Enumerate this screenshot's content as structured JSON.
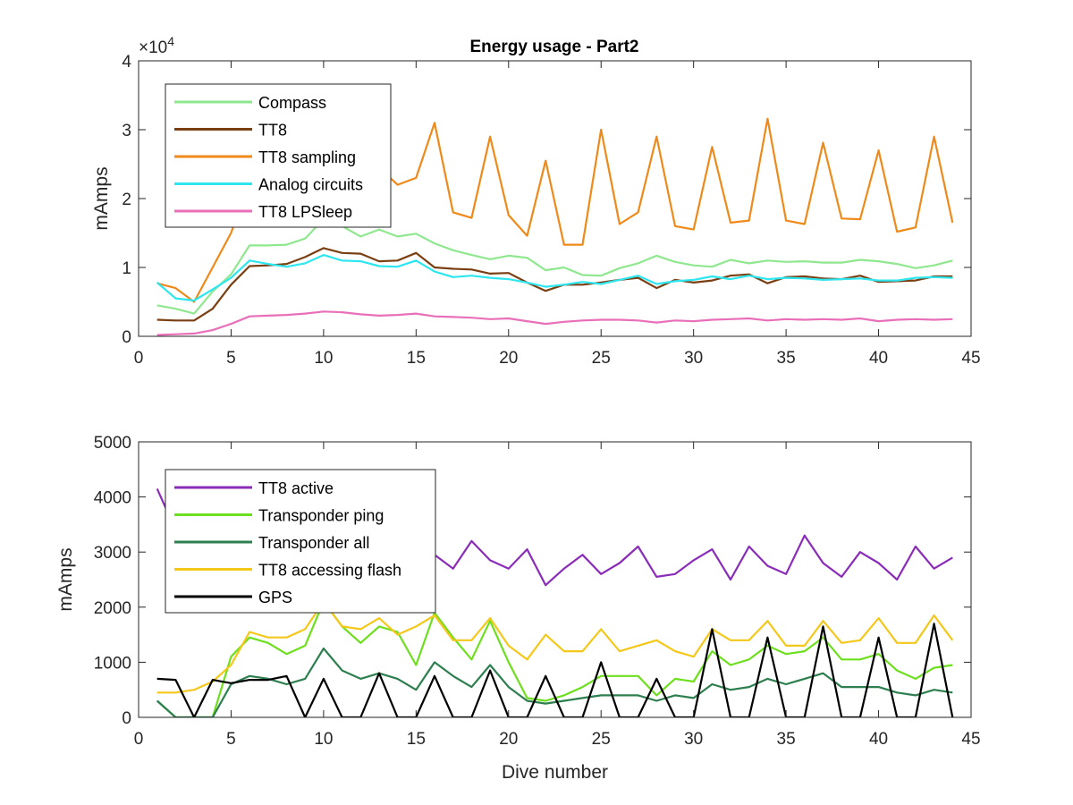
{
  "figure_title": "Energy usage - Part2",
  "chart_data": [
    {
      "type": "line",
      "title": "Energy usage - Part2",
      "xlabel": "",
      "ylabel": "mAmps",
      "exponent_label": "×10",
      "exponent_power": "4",
      "xlim": [
        0,
        45
      ],
      "ylim": [
        0,
        40000
      ],
      "xticks": [
        "0",
        "5",
        "10",
        "15",
        "20",
        "25",
        "30",
        "35",
        "40",
        "45"
      ],
      "yticks": [
        "0",
        "1",
        "2",
        "3",
        "4"
      ],
      "ytick_values": [
        0,
        10000,
        20000,
        30000,
        40000
      ],
      "grid": false,
      "legend_position": "top-left",
      "x": [
        1,
        2,
        3,
        4,
        5,
        6,
        7,
        8,
        9,
        10,
        11,
        12,
        13,
        14,
        15,
        16,
        17,
        18,
        19,
        20,
        21,
        22,
        23,
        24,
        25,
        26,
        27,
        28,
        29,
        30,
        31,
        32,
        33,
        34,
        35,
        36,
        37,
        38,
        39,
        40,
        41,
        42,
        43,
        44
      ],
      "series": [
        {
          "name": "Compass",
          "color": "#8fe88f",
          "values": [
            4500,
            4000,
            3300,
            6500,
            9000,
            13200,
            13200,
            13300,
            14200,
            17000,
            16000,
            14500,
            15500,
            14500,
            14900,
            13500,
            12500,
            11800,
            11200,
            11700,
            11400,
            9600,
            10000,
            8900,
            8800,
            9900,
            10600,
            11700,
            10800,
            10300,
            10100,
            11100,
            10600,
            11000,
            10800,
            10900,
            10700,
            10700,
            11100,
            10900,
            10500,
            9900,
            10300,
            11000
          ]
        },
        {
          "name": "TT8",
          "color": "#7a3f12",
          "values": [
            2400,
            2300,
            2300,
            4000,
            7500,
            10200,
            10300,
            10500,
            11500,
            12800,
            12100,
            12000,
            10900,
            11000,
            12100,
            10000,
            9800,
            9700,
            9100,
            9200,
            7800,
            6600,
            7500,
            7500,
            7800,
            8200,
            8500,
            7000,
            8200,
            7800,
            8100,
            8800,
            9000,
            7700,
            8600,
            8700,
            8400,
            8300,
            8800,
            7900,
            8000,
            8100,
            8700,
            8700
          ]
        },
        {
          "name": "TT8 sampling",
          "color": "#ee8a1a",
          "values": [
            7700,
            7000,
            5000,
            10000,
            15000,
            22500,
            24000,
            23500,
            25000,
            26500,
            25500,
            25000,
            24500,
            22000,
            23000,
            31000,
            18000,
            17200,
            29000,
            17600,
            14600,
            25500,
            13300,
            13300,
            30000,
            16300,
            18000,
            29000,
            16000,
            15500,
            27500,
            16500,
            16800,
            31600,
            16800,
            16300,
            28100,
            17100,
            17000,
            27000,
            15200,
            15800,
            29000,
            16500
          ]
        },
        {
          "name": "Analog circuits",
          "color": "#2de6ef",
          "values": [
            7800,
            5500,
            5200,
            6800,
            8500,
            11000,
            10500,
            10100,
            10600,
            11800,
            11000,
            10900,
            10200,
            10100,
            11000,
            9400,
            8600,
            8800,
            8500,
            8300,
            7800,
            7200,
            7500,
            7900,
            7600,
            8200,
            8800,
            7600,
            8000,
            8200,
            8700,
            8300,
            8800,
            8300,
            8500,
            8400,
            8200,
            8300,
            8400,
            8100,
            8100,
            8500,
            8600,
            8500
          ]
        },
        {
          "name": "TT8 LPSleep",
          "color": "#e86fb8",
          "values": [
            200,
            300,
            400,
            900,
            1800,
            2900,
            3000,
            3100,
            3300,
            3600,
            3500,
            3200,
            3000,
            3100,
            3300,
            2900,
            2800,
            2700,
            2500,
            2600,
            2200,
            1800,
            2100,
            2300,
            2400,
            2400,
            2300,
            2000,
            2300,
            2200,
            2400,
            2500,
            2600,
            2300,
            2500,
            2400,
            2500,
            2400,
            2600,
            2200,
            2400,
            2500,
            2400,
            2500
          ]
        }
      ]
    },
    {
      "type": "line",
      "title": "",
      "xlabel": "Dive number",
      "ylabel": "mAmps",
      "xlim": [
        0,
        45
      ],
      "ylim": [
        0,
        5000
      ],
      "xticks": [
        "0",
        "5",
        "10",
        "15",
        "20",
        "25",
        "30",
        "35",
        "40",
        "45"
      ],
      "yticks": [
        "0",
        "1000",
        "2000",
        "3000",
        "4000",
        "5000"
      ],
      "ytick_values": [
        0,
        1000,
        2000,
        3000,
        4000,
        5000
      ],
      "grid": false,
      "legend_position": "top-left",
      "x": [
        1,
        2,
        3,
        4,
        5,
        6,
        7,
        8,
        9,
        10,
        11,
        12,
        13,
        14,
        15,
        16,
        17,
        18,
        19,
        20,
        21,
        22,
        23,
        24,
        25,
        26,
        27,
        28,
        29,
        30,
        31,
        32,
        33,
        34,
        35,
        36,
        37,
        38,
        39,
        40,
        41,
        42,
        43,
        44
      ],
      "series": [
        {
          "name": "TT8 active",
          "color": "#8a2cb8",
          "values": [
            4150,
            3400,
            3300,
            3300,
            3350,
            3200,
            3350,
            3300,
            3100,
            3100,
            3050,
            2950,
            3000,
            2900,
            3000,
            2950,
            2700,
            3200,
            2850,
            2700,
            3050,
            2400,
            2700,
            2950,
            2600,
            2800,
            3100,
            2550,
            2600,
            2850,
            3050,
            2500,
            3100,
            2750,
            2600,
            3300,
            2800,
            2550,
            3000,
            2800,
            2500,
            3100,
            2700,
            2900
          ]
        },
        {
          "name": "Transponder ping",
          "color": "#6edf1e",
          "values": [
            300,
            0,
            0,
            0,
            1100,
            1450,
            1350,
            1150,
            1300,
            2100,
            1650,
            1350,
            1650,
            1550,
            950,
            1900,
            1450,
            1050,
            1750,
            1000,
            350,
            300,
            400,
            550,
            750,
            750,
            750,
            400,
            700,
            650,
            1200,
            950,
            1050,
            1300,
            1150,
            1200,
            1450,
            1050,
            1050,
            1150,
            850,
            700,
            900,
            950
          ]
        },
        {
          "name": "Transponder all",
          "color": "#2e7f4f",
          "values": [
            300,
            0,
            0,
            0,
            600,
            750,
            700,
            600,
            700,
            1250,
            850,
            700,
            800,
            700,
            500,
            1000,
            750,
            550,
            950,
            550,
            300,
            250,
            300,
            350,
            400,
            400,
            400,
            300,
            400,
            350,
            600,
            500,
            550,
            700,
            600,
            700,
            800,
            550,
            550,
            550,
            450,
            400,
            500,
            450
          ]
        },
        {
          "name": "TT8 accessing flash",
          "color": "#f4c81a",
          "values": [
            450,
            450,
            500,
            650,
            950,
            1550,
            1450,
            1450,
            1600,
            2100,
            1650,
            1600,
            1800,
            1500,
            1650,
            1850,
            1400,
            1400,
            1800,
            1300,
            1050,
            1500,
            1200,
            1200,
            1600,
            1200,
            1300,
            1400,
            1200,
            1100,
            1600,
            1400,
            1400,
            1750,
            1300,
            1300,
            1750,
            1350,
            1400,
            1800,
            1350,
            1350,
            1850,
            1400
          ]
        },
        {
          "name": "GPS",
          "color": "#000000",
          "values": [
            700,
            680,
            0,
            680,
            620,
            680,
            680,
            750,
            0,
            700,
            0,
            0,
            800,
            0,
            0,
            750,
            0,
            0,
            850,
            0,
            0,
            750,
            0,
            0,
            1000,
            0,
            0,
            700,
            0,
            0,
            1600,
            0,
            0,
            1450,
            0,
            0,
            1650,
            0,
            0,
            1450,
            0,
            0,
            1700,
            0
          ]
        }
      ]
    }
  ]
}
